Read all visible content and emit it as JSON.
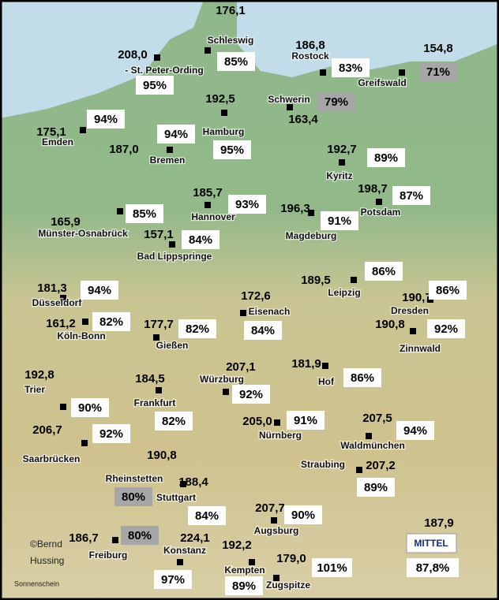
{
  "stations": [
    {
      "name": "Schleswig",
      "value": "176,1",
      "percent": "85%"
    },
    {
      "name": "- St. Peter-Ording",
      "value": "208,0",
      "percent": "95%"
    },
    {
      "name": "Rostock",
      "value": "186,8",
      "percent": "83%"
    },
    {
      "name": "Greifswald",
      "value": "154,8",
      "percent": "71%"
    },
    {
      "name": "Schwerin",
      "value": "163,4",
      "percent": "79%"
    },
    {
      "name": "Hamburg",
      "value": "192,5",
      "percent": "95%"
    },
    {
      "name": "Emden",
      "value": "175,1",
      "percent": "94%"
    },
    {
      "name": "Bremen",
      "value": "187,0",
      "percent": "94%"
    },
    {
      "name": "Kyritz",
      "value": "192,7",
      "percent": "89%"
    },
    {
      "name": "Potsdam",
      "value": "198,7",
      "percent": "87%"
    },
    {
      "name": "Hannover",
      "value": "185,7",
      "percent": "93%"
    },
    {
      "name": "Magdeburg",
      "value": "196,3",
      "percent": "91%"
    },
    {
      "name": "Münster-Osnabrück",
      "value": "165,9",
      "percent": "85%"
    },
    {
      "name": "Bad Lippspringe",
      "value": "157,1",
      "percent": "84%"
    },
    {
      "name": "Leipzig",
      "value": "189,5",
      "percent": "86%"
    },
    {
      "name": "Dresden",
      "value": "190,7",
      "percent": "86%"
    },
    {
      "name": "Zinnwald",
      "value": "190,8",
      "percent": "92%"
    },
    {
      "name": "Düsseldorf",
      "value": "181,3",
      "percent": "94%"
    },
    {
      "name": "Köln-Bonn",
      "value": "161,2",
      "percent": "82%"
    },
    {
      "name": "Eisenach",
      "value": "172,6",
      "percent": "84%"
    },
    {
      "name": "Gießen",
      "value": "177,7",
      "percent": "82%"
    },
    {
      "name": "Hof",
      "value": "181,9",
      "percent": "86%"
    },
    {
      "name": "Würzburg",
      "value": "207,1",
      "percent": "92%"
    },
    {
      "name": "Frankfurt",
      "value": "184,5",
      "percent": "82%"
    },
    {
      "name": "Trier",
      "value": "192,8",
      "percent": "90%"
    },
    {
      "name": "Nürnberg",
      "value": "205,0",
      "percent": "91%"
    },
    {
      "name": "Waldmünchen",
      "value": "207,5",
      "percent": "94%"
    },
    {
      "name": "Saarbrücken",
      "value": "206,7",
      "percent": "92%"
    },
    {
      "name": "Rheinstetten",
      "value": "190,8",
      "percent": "80%"
    },
    {
      "name": "Stuttgart",
      "value": "188,4",
      "percent": "84%"
    },
    {
      "name": "Straubing",
      "value": "207,2",
      "percent": "89%"
    },
    {
      "name": "Augsburg",
      "value": "207,7",
      "percent": "90%"
    },
    {
      "name": "Freiburg",
      "value": "186,7",
      "percent": "80%"
    },
    {
      "name": "Konstanz",
      "value": "224,1",
      "percent": "97%"
    },
    {
      "name": "Kempten",
      "value": "192,2",
      "percent": "89%"
    },
    {
      "name": "Zugspitze",
      "value": "179,0",
      "percent": "101%"
    }
  ],
  "average": {
    "label": "MITTEL",
    "value": "187,9",
    "percent": "87,8%"
  },
  "credit": [
    "©Bernd",
    "Hussing"
  ],
  "caption": "Sonnenschein"
}
